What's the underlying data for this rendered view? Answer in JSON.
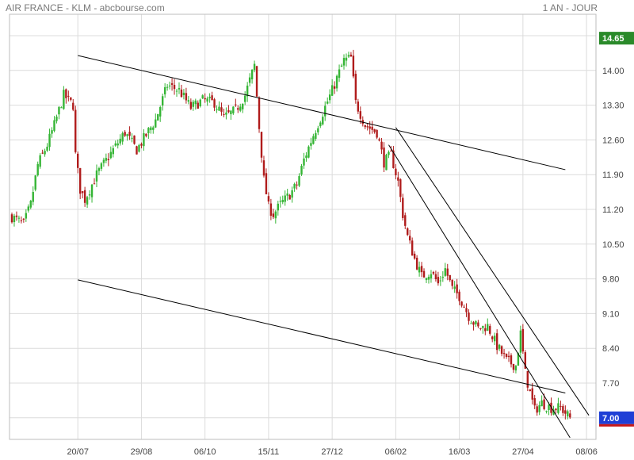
{
  "header": {
    "title": "AIR FRANCE - KLM - abcbourse.com",
    "period": "1 AN - JOUR"
  },
  "colors": {
    "up": "#35b535",
    "down": "#b01c1c",
    "grid": "#dcdcdc",
    "axis_text": "#444444",
    "last_high_badge": "#2a8a2a",
    "last_close_badge": "#1f3fd6",
    "last_close_underline": "#c81818",
    "trendline": "#000000"
  },
  "chart_data": {
    "type": "candlestick",
    "title": "AIR FRANCE - KLM - abcbourse.com",
    "period": "1 AN - JOUR",
    "ylim": [
      6.7,
      14.8
    ],
    "y_ticks": [
      "14.70",
      "14.00",
      "13.30",
      "12.60",
      "11.90",
      "11.20",
      "10.50",
      "9.80",
      "9.10",
      "8.40",
      "7.70",
      "7.00"
    ],
    "x_ticks": [
      "20/07",
      "29/08",
      "06/10",
      "15/11",
      "27/12",
      "06/02",
      "16/03",
      "27/04",
      "08/06"
    ],
    "x_tick_index": [
      28,
      55,
      82,
      109,
      136,
      163,
      190,
      217,
      244
    ],
    "grid": true,
    "price_badges": [
      {
        "label": "14.65",
        "value": 14.65,
        "kind": "high"
      },
      {
        "label": "7.00",
        "value": 7.0,
        "kind": "close"
      }
    ],
    "control_points": [
      [
        0,
        11.05
      ],
      [
        5,
        10.9
      ],
      [
        8,
        11.3
      ],
      [
        11,
        12.1
      ],
      [
        15,
        12.5
      ],
      [
        18,
        12.9
      ],
      [
        22,
        13.5
      ],
      [
        26,
        13.3
      ],
      [
        27,
        12.3
      ],
      [
        29,
        11.6
      ],
      [
        31,
        11.4
      ],
      [
        36,
        11.9
      ],
      [
        43,
        12.4
      ],
      [
        48,
        12.75
      ],
      [
        53,
        12.4
      ],
      [
        57,
        12.7
      ],
      [
        61,
        13.0
      ],
      [
        66,
        13.7
      ],
      [
        71,
        13.6
      ],
      [
        76,
        13.25
      ],
      [
        81,
        13.4
      ],
      [
        86,
        13.35
      ],
      [
        90,
        13.05
      ],
      [
        95,
        13.2
      ],
      [
        99,
        13.5
      ],
      [
        102,
        13.95
      ],
      [
        103,
        14.1
      ],
      [
        105,
        12.85
      ],
      [
        107,
        11.8
      ],
      [
        109,
        11.25
      ],
      [
        111,
        11.1
      ],
      [
        114,
        11.3
      ],
      [
        118,
        11.5
      ],
      [
        121,
        11.7
      ],
      [
        124,
        12.2
      ],
      [
        128,
        12.7
      ],
      [
        132,
        13.15
      ],
      [
        136,
        13.6
      ],
      [
        141,
        14.2
      ],
      [
        144,
        14.25
      ],
      [
        146,
        13.35
      ],
      [
        150,
        12.9
      ],
      [
        155,
        12.75
      ],
      [
        158,
        12.15
      ],
      [
        161,
        12.3
      ],
      [
        164,
        11.75
      ],
      [
        166,
        11.1
      ],
      [
        168,
        10.65
      ],
      [
        171,
        10.2
      ],
      [
        174,
        9.85
      ],
      [
        178,
        9.95
      ],
      [
        181,
        9.7
      ],
      [
        184,
        10.0
      ],
      [
        187,
        9.6
      ],
      [
        190,
        9.45
      ],
      [
        194,
        9.05
      ],
      [
        198,
        8.8
      ],
      [
        202,
        8.85
      ],
      [
        206,
        8.45
      ],
      [
        210,
        8.15
      ],
      [
        214,
        8.05
      ],
      [
        216,
        8.7
      ],
      [
        218,
        7.9
      ],
      [
        220,
        7.5
      ],
      [
        222,
        7.15
      ],
      [
        225,
        7.3
      ],
      [
        229,
        7.2
      ],
      [
        233,
        7.2
      ],
      [
        236,
        7.05
      ],
      [
        237,
        7.0
      ]
    ],
    "trendlines": [
      {
        "from": [
          28,
          14.3
        ],
        "to": [
          235,
          12.0
        ]
      },
      {
        "from": [
          28,
          9.78
        ],
        "to": [
          235,
          7.5
        ]
      },
      {
        "from": [
          160,
          12.5
        ],
        "to": [
          237,
          6.6
        ]
      },
      {
        "from": [
          163,
          12.85
        ],
        "to": [
          245,
          7.05
        ]
      }
    ]
  }
}
